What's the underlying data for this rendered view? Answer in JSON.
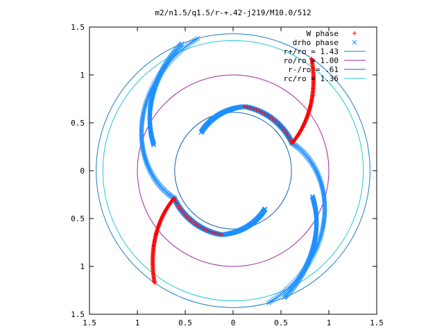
{
  "chart_data": {
    "type": "scatter",
    "title": "m2/n1.5/q1.5/r-+.42-j219/M10.0/512",
    "xlabel": "",
    "ylabel": "",
    "xlim": [
      -1.5,
      1.5
    ],
    "ylim": [
      -1.5,
      1.5
    ],
    "x_ticks": [
      -1.5,
      -1,
      -0.5,
      0,
      0.5,
      1,
      1.5
    ],
    "y_ticks": [
      -1.5,
      -1,
      -0.5,
      0,
      0.5,
      1,
      1.5
    ],
    "x_tick_labels": [
      "1.5",
      "1",
      "0.5",
      "0",
      "0.5",
      "1",
      "1.5"
    ],
    "y_tick_labels": [
      "1.5",
      "1",
      "0.5",
      "0",
      "0.5",
      "1",
      "1.5"
    ],
    "grid": false,
    "legend_position": "top-right",
    "series": [
      {
        "name": "W phase",
        "marker": "+",
        "color": "#ff0000",
        "arms": [
          {
            "start_angle_deg": 80,
            "end_angle_deg": 25,
            "r_start": 0.68,
            "r_end": 0.68,
            "skip_first": 0.9
          },
          {
            "start_angle_deg": 25,
            "end_angle_deg": 55,
            "r_start": 0.68,
            "r_end": 1.43,
            "skip_first": 0
          }
        ],
        "values_note": "two-armed spiral, symmetric by 180 deg rotation"
      },
      {
        "name": "drho phase",
        "marker": "x",
        "color": "#1e90ff",
        "arms": [
          {
            "start_angle_deg": 130,
            "end_angle_deg": 80,
            "r_start": 0.52,
            "r_end": 0.68
          },
          {
            "start_angle_deg": 80,
            "end_angle_deg": 25,
            "r_start": 0.68,
            "r_end": 0.68
          },
          {
            "start_angle_deg": 25,
            "end_angle_deg": -75,
            "r_start": 0.68,
            "r_end": 1.43
          },
          {
            "start_angle_deg": 162,
            "end_angle_deg": 112,
            "r_start": 0.87,
            "r_end": 1.43
          }
        ]
      }
    ],
    "circles": [
      {
        "name": "r+/ro = 1.43",
        "radius": 1.43,
        "color": "#1a7fc0"
      },
      {
        "name": "ro/ro = 1.00",
        "radius": 1.0,
        "color": "#a020a0"
      },
      {
        "name": "r-/ro = .61",
        "radius": 0.61,
        "color": "#1a5fb0"
      },
      {
        "name": "rc/ro = 1.36",
        "radius": 1.36,
        "color": "#20c8d0"
      }
    ]
  }
}
